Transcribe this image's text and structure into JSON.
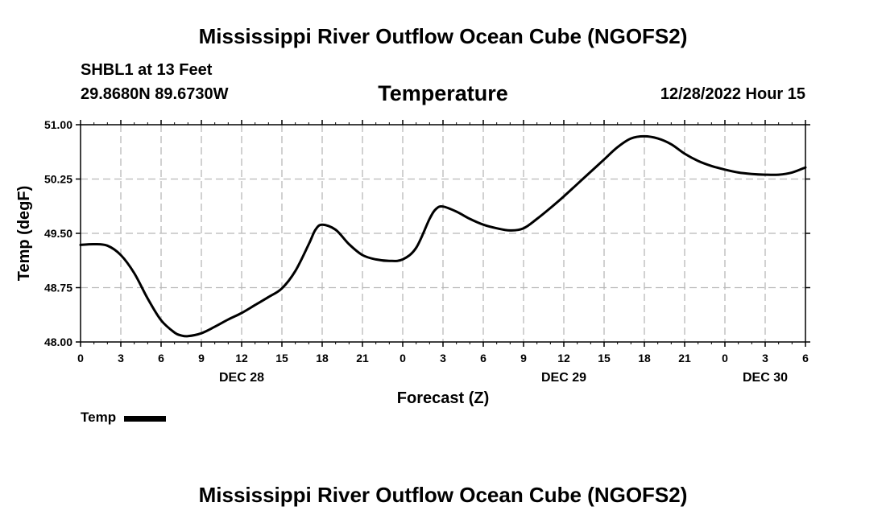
{
  "main_title": "Mississippi River Outflow Ocean Cube (NGOFS2)",
  "header": {
    "station": "SHBL1 at 13 Feet",
    "lat_lon": "29.8680N  89.6730W",
    "variable": "Temperature",
    "date_label": "12/28/2022 Hour 15"
  },
  "chart_data": {
    "type": "line",
    "title": "Temperature",
    "xlabel": "Forecast (Z)",
    "ylabel": "Temp (degF)",
    "x_unit": "hours since 12/28/2022 00Z",
    "xlim": [
      0,
      54
    ],
    "ylim": [
      48.0,
      51.0
    ],
    "yticks": [
      48.0,
      48.75,
      49.5,
      50.25,
      51.0
    ],
    "ytick_labels": [
      "48.00",
      "48.75",
      "49.50",
      "50.25",
      "51.00"
    ],
    "xtick_hours": [
      0,
      3,
      6,
      9,
      12,
      15,
      18,
      21,
      24,
      27,
      30,
      33,
      36,
      39,
      42,
      45,
      48,
      51,
      54
    ],
    "xtick_labels": [
      "0",
      "3",
      "6",
      "9",
      "12",
      "15",
      "18",
      "21",
      "0",
      "3",
      "6",
      "9",
      "12",
      "15",
      "18",
      "21",
      "0",
      "3",
      "6"
    ],
    "day_labels": [
      {
        "hour": 12,
        "label": "DEC 28"
      },
      {
        "hour": 36,
        "label": "DEC 29"
      },
      {
        "hour": 51,
        "label": "DEC 30"
      }
    ],
    "grid": true,
    "legend_position": "bottom-left",
    "series": [
      {
        "name": "Temp",
        "color": "#000000",
        "x": [
          0,
          1,
          2,
          3,
          4,
          5,
          6,
          7,
          7.5,
          8,
          9,
          10,
          11,
          12,
          13,
          14,
          15,
          16,
          17,
          17.5,
          18,
          19,
          20,
          21,
          22,
          23,
          24,
          25,
          26,
          26.5,
          27,
          28,
          29,
          30,
          31,
          32,
          33,
          34,
          35,
          36,
          37,
          38,
          39,
          40,
          41,
          42,
          43,
          44,
          45,
          46,
          47,
          48,
          49,
          50,
          51,
          52,
          53,
          54
        ],
        "values": [
          49.34,
          49.35,
          49.33,
          49.2,
          48.95,
          48.6,
          48.3,
          48.13,
          48.09,
          48.08,
          48.12,
          48.21,
          48.31,
          48.4,
          48.51,
          48.62,
          48.74,
          48.98,
          49.35,
          49.55,
          49.62,
          49.55,
          49.35,
          49.2,
          49.14,
          49.12,
          49.14,
          49.3,
          49.7,
          49.84,
          49.87,
          49.8,
          49.7,
          49.62,
          49.57,
          49.54,
          49.57,
          49.7,
          49.85,
          50.01,
          50.18,
          50.35,
          50.52,
          50.69,
          50.81,
          50.84,
          50.81,
          50.73,
          50.6,
          50.5,
          50.43,
          50.38,
          50.34,
          50.32,
          50.31,
          50.31,
          50.34,
          50.41
        ]
      }
    ]
  },
  "legend": {
    "label": "Temp"
  },
  "footer_title": "Mississippi River Outflow Ocean Cube (NGOFS2)"
}
